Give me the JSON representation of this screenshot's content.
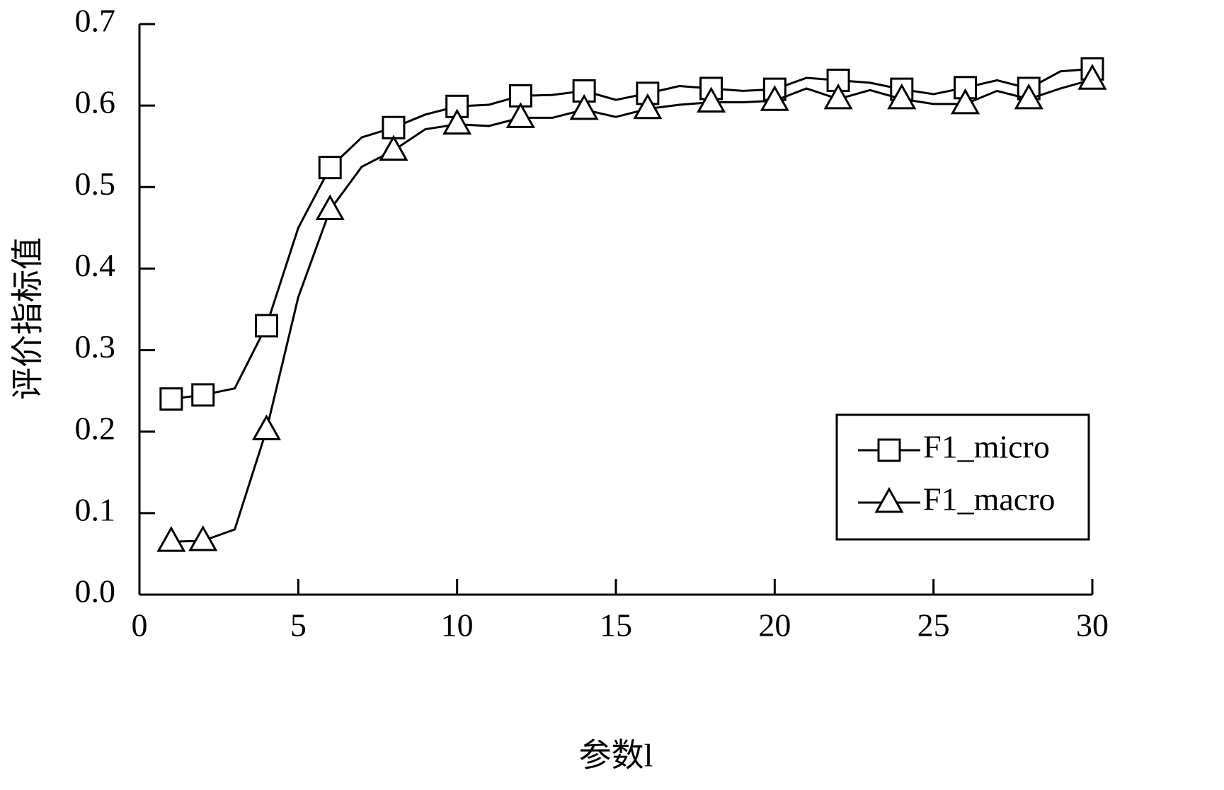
{
  "chart_data": {
    "type": "line",
    "x_label": "参数l",
    "y_label": "评价指标值",
    "x": [
      1,
      2,
      3,
      4,
      5,
      6,
      7,
      8,
      9,
      10,
      11,
      12,
      13,
      14,
      15,
      16,
      17,
      18,
      19,
      20,
      21,
      22,
      23,
      24,
      25,
      26,
      27,
      28,
      29,
      30
    ],
    "series": [
      {
        "name": "F1_micro",
        "color": "#000000",
        "marker": "square",
        "values": [
          0.24,
          0.245,
          0.253,
          0.33,
          0.45,
          0.524,
          0.561,
          0.573,
          0.589,
          0.599,
          0.601,
          0.612,
          0.613,
          0.618,
          0.607,
          0.615,
          0.624,
          0.621,
          0.618,
          0.62,
          0.634,
          0.631,
          0.628,
          0.62,
          0.614,
          0.622,
          0.631,
          0.621,
          0.642,
          0.645
        ]
      },
      {
        "name": "F1_macro",
        "color": "#000000",
        "marker": "triangle",
        "values": [
          0.065,
          0.066,
          0.08,
          0.202,
          0.365,
          0.472,
          0.525,
          0.545,
          0.571,
          0.577,
          0.575,
          0.585,
          0.585,
          0.595,
          0.586,
          0.596,
          0.601,
          0.604,
          0.604,
          0.606,
          0.621,
          0.608,
          0.619,
          0.608,
          0.602,
          0.602,
          0.618,
          0.608,
          0.621,
          0.632
        ]
      }
    ],
    "markevery": [
      0,
      1,
      3,
      5,
      7,
      9,
      11,
      13,
      15,
      17,
      19,
      21,
      23,
      25,
      27,
      29
    ],
    "xlim": [
      0,
      30
    ],
    "xticks": [
      0,
      5,
      10,
      15,
      20,
      25,
      30
    ],
    "ylim": [
      0,
      0.7
    ],
    "yticks": [
      {
        "value": 0,
        "label": "0.0"
      },
      0.1,
      0.2,
      0.3,
      0.4,
      0.5,
      0.6,
      0.7
    ],
    "legend": "lower right"
  }
}
